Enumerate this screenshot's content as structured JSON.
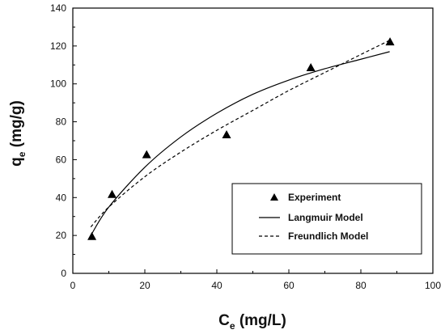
{
  "chart_data": {
    "type": "scatter",
    "title": "",
    "xlabel": {
      "main": "C",
      "sub": "e",
      "rest": " (mg/L)"
    },
    "ylabel": {
      "main": "q",
      "sub": "e",
      "rest": " (mg/g)"
    },
    "xlim": [
      0,
      100
    ],
    "ylim": [
      0,
      140
    ],
    "x_ticks": [
      0,
      20,
      40,
      60,
      80,
      100
    ],
    "y_ticks": [
      0,
      20,
      40,
      60,
      80,
      100,
      120,
      140
    ],
    "grid": false,
    "legend_position": "bottom-right",
    "series": [
      {
        "name": "Experiment",
        "style": "triangle-marker",
        "color": "#000000",
        "x": [
          5.3,
          10.9,
          20.5,
          42.7,
          66.1,
          88.1
        ],
        "y": [
          19.3,
          41.5,
          62.5,
          73.0,
          108.4,
          122.0
        ]
      },
      {
        "name": "Langmuir Model",
        "style": "solid-line",
        "color": "#000000",
        "x": [
          5,
          10,
          20,
          30,
          40,
          50,
          60,
          70,
          80,
          88
        ],
        "y": [
          20.0,
          35.0,
          56.0,
          72.0,
          84.5,
          94.5,
          102.0,
          108.0,
          113.0,
          117.0
        ]
      },
      {
        "name": "Freundlich Model",
        "style": "dashed-line",
        "color": "#000000",
        "x": [
          5,
          10,
          20,
          30,
          40,
          50,
          60,
          70,
          80,
          88
        ],
        "y": [
          24.5,
          35.0,
          51.0,
          64.0,
          75.5,
          86.0,
          96.5,
          106.0,
          115.5,
          123.0
        ]
      }
    ]
  }
}
